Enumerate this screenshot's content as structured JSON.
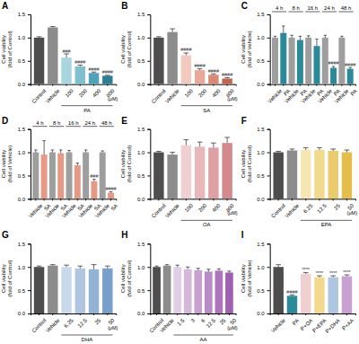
{
  "chart_data": [
    {
      "type": "bar",
      "title": "A",
      "categories": [
        "Control",
        "Vehicle",
        "100",
        "200",
        "400",
        "800"
      ],
      "values": [
        1.0,
        1.22,
        0.57,
        0.38,
        0.24,
        0.18
      ],
      "errors": [
        0.02,
        0.02,
        0.08,
        0.03,
        0.02,
        0.01
      ],
      "significance": [
        null,
        null,
        "###",
        "####",
        "####",
        "####"
      ],
      "colors": [
        "#4d4d4d",
        "#8c8c8c",
        "#a8d5de",
        "#7fc0cf",
        "#4fa3b8",
        "#2b7f95"
      ],
      "ylim": [
        0,
        1.5
      ],
      "yticks": [
        {
          "value": 0,
          "label": "0.0"
        },
        0.5,
        {
          "value": 1,
          "label": "1.0"
        },
        1.5
      ],
      "y_label": [
        "Cell viability",
        "(fold of Control)"
      ],
      "x_label": "PA",
      "x_unit": "(μM)"
    },
    {
      "type": "bar",
      "title": "B",
      "categories": [
        "Control",
        "Vehicle",
        "100",
        "200",
        "400",
        "800"
      ],
      "values": [
        1.0,
        1.12,
        0.62,
        0.3,
        0.2,
        0.12
      ],
      "errors": [
        0.02,
        0.07,
        0.05,
        0.03,
        0.02,
        0.02
      ],
      "significance": [
        null,
        null,
        "####",
        "####",
        "####",
        "####"
      ],
      "colors": [
        "#4d4d4d",
        "#8c8c8c",
        "#f2c9bd",
        "#e8a998",
        "#d98872",
        "#c4664f"
      ],
      "ylim": [
        0,
        1.5
      ],
      "yticks": [
        {
          "value": 0,
          "label": "0.0"
        },
        0.5,
        {
          "value": 1,
          "label": "1.0"
        },
        1.5
      ],
      "y_label": [
        "Cell viability",
        "(fold of Control)"
      ],
      "x_label": "SA",
      "x_unit": "(μM)"
    },
    {
      "type": "bar",
      "title": "C",
      "categories": [
        "Vehicle",
        "PA",
        "Vehicle",
        "PA",
        "Vehicle",
        "PA",
        "Vehicle",
        "PA",
        "Vehicle",
        "PA"
      ],
      "groups": [
        "4 h",
        "8 h",
        "16 h",
        "24 h",
        "48 h"
      ],
      "values": [
        1.0,
        1.1,
        1.0,
        0.95,
        1.0,
        0.82,
        1.0,
        0.35,
        1.0,
        0.33
      ],
      "errors": [
        0.03,
        0.15,
        0.05,
        0.08,
        0.04,
        0.15,
        0.05,
        0.03,
        0.03,
        0.03
      ],
      "significance": [
        null,
        null,
        null,
        null,
        null,
        null,
        null,
        "####",
        null,
        "####"
      ],
      "colors": [
        "#9e9e9e",
        "#2b8a9a",
        "#9e9e9e",
        "#2b8a9a",
        "#9e9e9e",
        "#2b8a9a",
        "#9e9e9e",
        "#2b8a9a",
        "#9e9e9e",
        "#2b8a9a"
      ],
      "ylim": [
        0,
        1.5
      ],
      "yticks": [
        {
          "value": 0,
          "label": "0.0"
        },
        0.5,
        {
          "value": 1,
          "label": "1.0"
        },
        1.5
      ],
      "y_label": [
        "Cell viability",
        "(fold of Vehicle)"
      ]
    },
    {
      "type": "bar",
      "title": "D",
      "categories": [
        "Vehicle",
        "SA",
        "Vehicle",
        "SA",
        "Vehicle",
        "SA",
        "Vehicle",
        "SA",
        "Vehicle",
        "SA"
      ],
      "groups": [
        "4 h",
        "8 h",
        "16 h",
        "24 h",
        "48 h"
      ],
      "values": [
        1.0,
        0.95,
        1.0,
        0.98,
        1.0,
        0.72,
        1.0,
        0.38,
        1.0,
        0.13
      ],
      "errors": [
        0.05,
        0.3,
        0.05,
        0.07,
        0.04,
        0.05,
        0.05,
        0.04,
        0.03,
        0.02
      ],
      "significance": [
        null,
        null,
        null,
        null,
        null,
        null,
        null,
        "###",
        null,
        "####"
      ],
      "colors": [
        "#9e9e9e",
        "#e69a85",
        "#9e9e9e",
        "#e69a85",
        "#9e9e9e",
        "#e69a85",
        "#9e9e9e",
        "#e69a85",
        "#9e9e9e",
        "#e69a85"
      ],
      "ylim": [
        0,
        1.5
      ],
      "yticks": [
        {
          "value": 0,
          "label": "0.0"
        },
        0.5,
        {
          "value": 1,
          "label": "1.0"
        },
        1.5
      ],
      "y_label": [
        "Cell viability",
        "(fold of Vehicle)"
      ]
    },
    {
      "type": "bar",
      "title": "E",
      "categories": [
        "Control",
        "Vehicle",
        "100",
        "200",
        "400",
        "800"
      ],
      "values": [
        1.0,
        0.95,
        1.15,
        1.12,
        1.1,
        1.2
      ],
      "errors": [
        0.02,
        0.05,
        0.12,
        0.1,
        0.1,
        0.12
      ],
      "colors": [
        "#4d4d4d",
        "#8c8c8c",
        "#f0cfd0",
        "#e8b7b9",
        "#dfa0a3",
        "#d4898d"
      ],
      "ylim": [
        0,
        1.5
      ],
      "yticks": [
        {
          "value": 0,
          "label": "0.0"
        },
        0.5,
        {
          "value": 1,
          "label": "1.0"
        },
        1.5
      ],
      "y_label": [
        "Cell viability",
        "(fold of Control)"
      ],
      "x_label": "OA",
      "x_unit": "(μM)"
    },
    {
      "type": "bar",
      "title": "F",
      "categories": [
        "Control",
        "Vehicle",
        "6.25",
        "12.5",
        "25",
        "50"
      ],
      "values": [
        1.0,
        1.04,
        1.05,
        1.05,
        1.03,
        1.0
      ],
      "errors": [
        0.02,
        0.03,
        0.05,
        0.05,
        0.04,
        0.05
      ],
      "colors": [
        "#4d4d4d",
        "#8c8c8c",
        "#f6e6b0",
        "#f1d98e",
        "#eccb6c",
        "#e5bd4b"
      ],
      "ylim": [
        0,
        1.5
      ],
      "yticks": [
        {
          "value": 0,
          "label": "0.0"
        },
        0.5,
        {
          "value": 1,
          "label": "1.0"
        },
        1.5
      ],
      "y_label": [
        "Cell viability",
        "(fold of Control)"
      ],
      "x_label": "EPA",
      "x_unit": "(μM)"
    },
    {
      "type": "bar",
      "title": "G",
      "categories": [
        "Control",
        "Vehicle",
        "6.25",
        "12.5",
        "25",
        "50"
      ],
      "values": [
        1.0,
        1.03,
        1.0,
        0.97,
        0.95,
        0.97
      ],
      "errors": [
        0.02,
        0.02,
        0.04,
        0.05,
        0.1,
        0.05
      ],
      "colors": [
        "#4d4d4d",
        "#8c8c8c",
        "#c9d9ea",
        "#aec6e0",
        "#93b3d5",
        "#789fca"
      ],
      "ylim": [
        0,
        1.5
      ],
      "yticks": [
        {
          "value": 0,
          "label": "0.0"
        },
        0.5,
        {
          "value": 1,
          "label": "1.0"
        },
        1.5
      ],
      "y_label": [
        "Cell viability",
        "(fold of Control)"
      ],
      "x_label": "DHA",
      "x_unit": "(μM)"
    },
    {
      "type": "bar",
      "title": "H",
      "categories": [
        "Control",
        "Vehicle",
        "1.5",
        "3",
        "6",
        "12.5",
        "25",
        "50"
      ],
      "values": [
        1.0,
        1.03,
        1.0,
        0.95,
        0.93,
        0.9,
        0.92,
        0.88
      ],
      "errors": [
        0.02,
        0.02,
        0.04,
        0.05,
        0.04,
        0.05,
        0.04,
        0.03
      ],
      "colors": [
        "#4d4d4d",
        "#8c8c8c",
        "#e2cde6",
        "#d5b7dc",
        "#c8a1d2",
        "#bb8bc8",
        "#ae75be",
        "#a15fb4"
      ],
      "ylim": [
        0,
        1.5
      ],
      "yticks": [
        {
          "value": 0,
          "label": "0.0"
        },
        0.5,
        {
          "value": 1,
          "label": "1.0"
        },
        1.5
      ],
      "y_label": [
        "Cell viability",
        "(fold of Control)"
      ],
      "x_label": "AA",
      "x_unit": "(μM)"
    },
    {
      "type": "bar",
      "title": "I",
      "categories": [
        "Vehicle",
        "PA",
        "P+OA",
        "P+EPA",
        "P+DHA",
        "P+AA"
      ],
      "values": [
        1.0,
        0.38,
        0.85,
        0.78,
        0.78,
        0.8
      ],
      "errors": [
        0.05,
        0.02,
        0.03,
        0.03,
        0.03,
        0.03
      ],
      "significance": [
        null,
        "####",
        "****",
        "****",
        "****",
        "****"
      ],
      "colors": [
        "#4d4d4d",
        "#2b8a9a",
        "#f0cfd0",
        "#f1d98e",
        "#aec6e0",
        "#c8a1d2"
      ],
      "ylim": [
        0,
        1.5
      ],
      "yticks": [
        {
          "value": 0,
          "label": "0.0"
        },
        0.5,
        {
          "value": 1,
          "label": "1.0"
        },
        1.5
      ],
      "y_label": [
        "Cell viability",
        "(fold of Vehicle)"
      ]
    }
  ]
}
